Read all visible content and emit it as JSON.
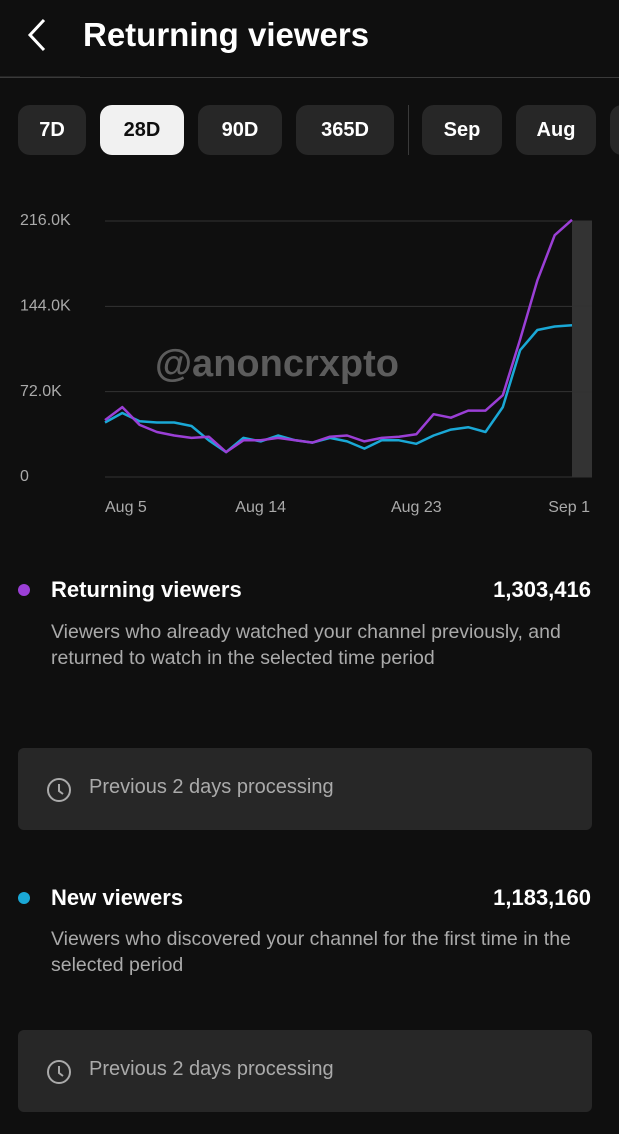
{
  "header": {
    "title": "Returning viewers"
  },
  "tabs": {
    "items": [
      "7D",
      "28D",
      "90D",
      "365D",
      "Sep",
      "Aug"
    ],
    "selected": 1
  },
  "watermark": "@anoncrxpto",
  "chart_data": {
    "type": "line",
    "categories": [
      "Aug 5",
      null,
      null,
      null,
      null,
      null,
      null,
      null,
      null,
      "Aug 14",
      null,
      null,
      null,
      null,
      null,
      null,
      null,
      null,
      "Aug 23",
      null,
      null,
      null,
      null,
      null,
      null,
      null,
      null,
      "Sep 1"
    ],
    "series": [
      {
        "name": "Returning viewers",
        "color": "#9b3fd6",
        "values": [
          48000,
          59000,
          44000,
          38000,
          35000,
          33000,
          34000,
          21000,
          31000,
          31000,
          33000,
          31000,
          29000,
          34000,
          35000,
          30000,
          33000,
          34000,
          36000,
          53000,
          50000,
          56000,
          56000,
          69000,
          116000,
          166000,
          204000,
          217000
        ]
      },
      {
        "name": "New viewers",
        "color": "#1aa8d6",
        "values": [
          46000,
          54000,
          47000,
          46000,
          46000,
          43000,
          31000,
          21000,
          33000,
          30000,
          35000,
          31000,
          29000,
          33000,
          30000,
          24000,
          31000,
          31000,
          28000,
          35000,
          40000,
          42000,
          38000,
          59000,
          107000,
          124000,
          127000,
          128000
        ]
      }
    ],
    "ylim": [
      0,
      216000
    ],
    "yticks": [
      0,
      {
        "value": 72000,
        "label": "72.0K"
      },
      {
        "value": 144000,
        "label": "144.0K"
      },
      {
        "value": 216000,
        "label": "216.0K"
      }
    ],
    "grid": true
  },
  "summary": [
    {
      "total": "1,303,416",
      "description": "Viewers who already watched your channel previously, and returned to watch in the selected time period",
      "note": "Previous 2 days processing"
    },
    {
      "total": "1,183,160",
      "description": "Viewers who discovered your channel for the first time in the selected period",
      "note": "Previous 2 days processing"
    }
  ]
}
